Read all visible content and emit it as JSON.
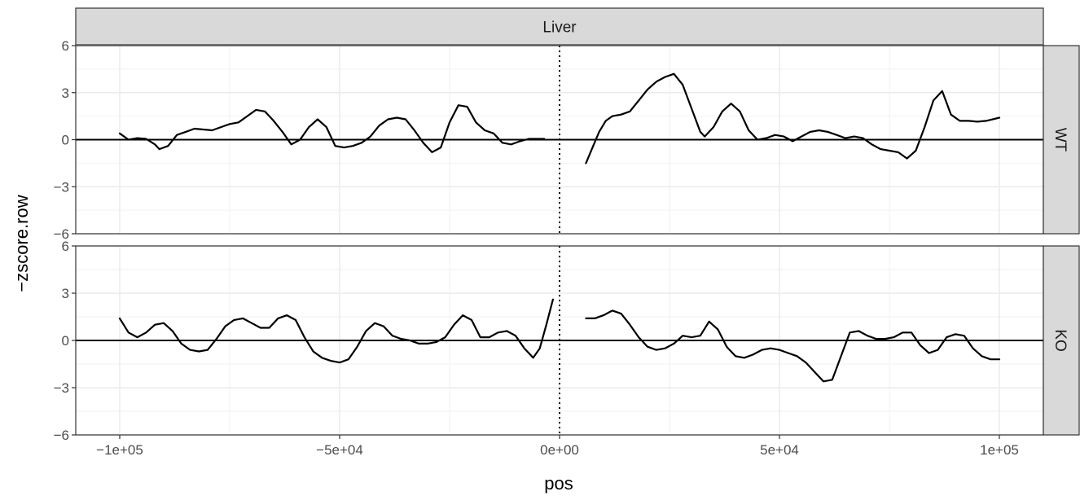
{
  "chart_data": {
    "type": "line",
    "facet_title": "Liver",
    "xlabel": "pos",
    "ylabel": "−zscore.row",
    "xlim": [
      -110000,
      110000
    ],
    "ylim": [
      -6,
      6
    ],
    "x_ticks": [
      {
        "value": -100000,
        "label": "−1e+05"
      },
      {
        "value": -50000,
        "label": "−5e+04"
      },
      {
        "value": 0,
        "label": "0e+00"
      },
      {
        "value": 50000,
        "label": "5e+04"
      },
      {
        "value": 100000,
        "label": "1e+05"
      }
    ],
    "y_ticks": [
      {
        "value": -6,
        "label": "−6"
      },
      {
        "value": -3,
        "label": "−3"
      },
      {
        "value": 0,
        "label": "0"
      },
      {
        "value": 3,
        "label": "3"
      },
      {
        "value": 6,
        "label": "6"
      }
    ],
    "hline": 0,
    "vline": 0,
    "grid": true,
    "panels": [
      {
        "strip": "WT",
        "segments": [
          [
            [
              -100000,
              0.4
            ],
            [
              -98000,
              0.0
            ],
            [
              -96000,
              0.1
            ],
            [
              -94000,
              0.05
            ],
            [
              -92000,
              -0.3
            ],
            [
              -91000,
              -0.6
            ],
            [
              -89000,
              -0.4
            ],
            [
              -87000,
              0.3
            ],
            [
              -85000,
              0.5
            ],
            [
              -83000,
              0.7
            ],
            [
              -81000,
              0.65
            ],
            [
              -79000,
              0.6
            ],
            [
              -77000,
              0.8
            ],
            [
              -75000,
              1.0
            ],
            [
              -73000,
              1.1
            ],
            [
              -71000,
              1.5
            ],
            [
              -69000,
              1.9
            ],
            [
              -67000,
              1.8
            ],
            [
              -65000,
              1.2
            ],
            [
              -63000,
              0.5
            ],
            [
              -61000,
              -0.3
            ],
            [
              -59000,
              0.0
            ],
            [
              -57000,
              0.8
            ],
            [
              -55000,
              1.3
            ],
            [
              -53000,
              0.8
            ],
            [
              -51000,
              -0.4
            ],
            [
              -49000,
              -0.5
            ],
            [
              -47000,
              -0.4
            ],
            [
              -45000,
              -0.2
            ],
            [
              -43000,
              0.2
            ],
            [
              -41000,
              0.9
            ],
            [
              -39000,
              1.3
            ],
            [
              -37000,
              1.4
            ],
            [
              -35000,
              1.3
            ],
            [
              -33000,
              0.6
            ],
            [
              -31000,
              -0.2
            ],
            [
              -29000,
              -0.8
            ],
            [
              -27000,
              -0.5
            ],
            [
              -25000,
              1.1
            ],
            [
              -23000,
              2.2
            ],
            [
              -21000,
              2.1
            ],
            [
              -19000,
              1.1
            ],
            [
              -17000,
              0.6
            ],
            [
              -15000,
              0.4
            ],
            [
              -13000,
              -0.2
            ],
            [
              -11000,
              -0.3
            ],
            [
              -9000,
              -0.1
            ],
            [
              -7000,
              0.05
            ],
            [
              -3500,
              0.05
            ]
          ],
          [
            [
              6000,
              -1.5
            ],
            [
              7500,
              -0.5
            ],
            [
              9000,
              0.5
            ],
            [
              10500,
              1.2
            ],
            [
              12000,
              1.5
            ],
            [
              14000,
              1.6
            ],
            [
              16000,
              1.8
            ],
            [
              18000,
              2.5
            ],
            [
              20000,
              3.2
            ],
            [
              22000,
              3.7
            ],
            [
              24000,
              4.0
            ],
            [
              26000,
              4.2
            ],
            [
              28000,
              3.5
            ],
            [
              30000,
              2.0
            ],
            [
              32000,
              0.5
            ],
            [
              33000,
              0.2
            ],
            [
              35000,
              0.8
            ],
            [
              37000,
              1.8
            ],
            [
              39000,
              2.3
            ],
            [
              41000,
              1.8
            ],
            [
              43000,
              0.6
            ],
            [
              45000,
              0.0
            ],
            [
              47000,
              0.1
            ],
            [
              49000,
              0.3
            ],
            [
              51000,
              0.2
            ],
            [
              53000,
              -0.1
            ],
            [
              55000,
              0.2
            ],
            [
              57000,
              0.5
            ],
            [
              59000,
              0.6
            ],
            [
              61000,
              0.5
            ],
            [
              63000,
              0.3
            ],
            [
              65000,
              0.1
            ],
            [
              67000,
              0.2
            ],
            [
              69000,
              0.1
            ],
            [
              71000,
              -0.3
            ],
            [
              73000,
              -0.6
            ],
            [
              75000,
              -0.7
            ],
            [
              77000,
              -0.8
            ],
            [
              79000,
              -1.2
            ],
            [
              81000,
              -0.7
            ],
            [
              83000,
              0.8
            ],
            [
              85000,
              2.5
            ],
            [
              87000,
              3.1
            ],
            [
              89000,
              1.6
            ],
            [
              91000,
              1.2
            ],
            [
              93000,
              1.2
            ],
            [
              95000,
              1.15
            ],
            [
              97000,
              1.2
            ],
            [
              100000,
              1.4
            ]
          ]
        ]
      },
      {
        "strip": "KO",
        "segments": [
          [
            [
              -100000,
              1.4
            ],
            [
              -98000,
              0.5
            ],
            [
              -96000,
              0.2
            ],
            [
              -94000,
              0.5
            ],
            [
              -92000,
              1.0
            ],
            [
              -90000,
              1.1
            ],
            [
              -88000,
              0.6
            ],
            [
              -86000,
              -0.2
            ],
            [
              -84000,
              -0.6
            ],
            [
              -82000,
              -0.7
            ],
            [
              -80000,
              -0.6
            ],
            [
              -78000,
              0.1
            ],
            [
              -76000,
              0.9
            ],
            [
              -74000,
              1.3
            ],
            [
              -72000,
              1.4
            ],
            [
              -70000,
              1.1
            ],
            [
              -68000,
              0.8
            ],
            [
              -66000,
              0.8
            ],
            [
              -64000,
              1.4
            ],
            [
              -62000,
              1.6
            ],
            [
              -60000,
              1.3
            ],
            [
              -58000,
              0.2
            ],
            [
              -56000,
              -0.7
            ],
            [
              -54000,
              -1.1
            ],
            [
              -52000,
              -1.3
            ],
            [
              -50000,
              -1.4
            ],
            [
              -48000,
              -1.2
            ],
            [
              -46000,
              -0.4
            ],
            [
              -44000,
              0.6
            ],
            [
              -42000,
              1.1
            ],
            [
              -40000,
              0.9
            ],
            [
              -38000,
              0.3
            ],
            [
              -36000,
              0.1
            ],
            [
              -34000,
              0.0
            ],
            [
              -32000,
              -0.2
            ],
            [
              -30000,
              -0.2
            ],
            [
              -28000,
              -0.1
            ],
            [
              -26000,
              0.2
            ],
            [
              -24000,
              1.0
            ],
            [
              -22000,
              1.6
            ],
            [
              -20000,
              1.3
            ],
            [
              -18000,
              0.2
            ],
            [
              -16000,
              0.2
            ],
            [
              -14000,
              0.5
            ],
            [
              -12000,
              0.6
            ],
            [
              -10000,
              0.3
            ],
            [
              -8000,
              -0.5
            ],
            [
              -6000,
              -1.1
            ],
            [
              -4500,
              -0.5
            ],
            [
              -3000,
              1.0
            ],
            [
              -1500,
              2.6
            ]
          ],
          [
            [
              6000,
              1.4
            ],
            [
              8000,
              1.4
            ],
            [
              10000,
              1.6
            ],
            [
              12000,
              1.9
            ],
            [
              14000,
              1.7
            ],
            [
              16000,
              1.0
            ],
            [
              18000,
              0.2
            ],
            [
              20000,
              -0.4
            ],
            [
              22000,
              -0.6
            ],
            [
              24000,
              -0.5
            ],
            [
              26000,
              -0.2
            ],
            [
              28000,
              0.3
            ],
            [
              30000,
              0.2
            ],
            [
              32000,
              0.3
            ],
            [
              34000,
              1.2
            ],
            [
              36000,
              0.7
            ],
            [
              38000,
              -0.4
            ],
            [
              40000,
              -1.0
            ],
            [
              42000,
              -1.1
            ],
            [
              44000,
              -0.9
            ],
            [
              46000,
              -0.6
            ],
            [
              48000,
              -0.5
            ],
            [
              50000,
              -0.6
            ],
            [
              52000,
              -0.8
            ],
            [
              54000,
              -1.0
            ],
            [
              56000,
              -1.4
            ],
            [
              58000,
              -2.0
            ],
            [
              60000,
              -2.6
            ],
            [
              62000,
              -2.5
            ],
            [
              64000,
              -1.0
            ],
            [
              66000,
              0.5
            ],
            [
              68000,
              0.6
            ],
            [
              70000,
              0.3
            ],
            [
              72000,
              0.1
            ],
            [
              74000,
              0.1
            ],
            [
              76000,
              0.2
            ],
            [
              78000,
              0.5
            ],
            [
              80000,
              0.5
            ],
            [
              82000,
              -0.3
            ],
            [
              84000,
              -0.8
            ],
            [
              86000,
              -0.6
            ],
            [
              88000,
              0.2
            ],
            [
              90000,
              0.4
            ],
            [
              92000,
              0.3
            ],
            [
              94000,
              -0.5
            ],
            [
              96000,
              -1.0
            ],
            [
              98000,
              -1.2
            ],
            [
              100000,
              -1.2
            ]
          ]
        ]
      }
    ]
  }
}
